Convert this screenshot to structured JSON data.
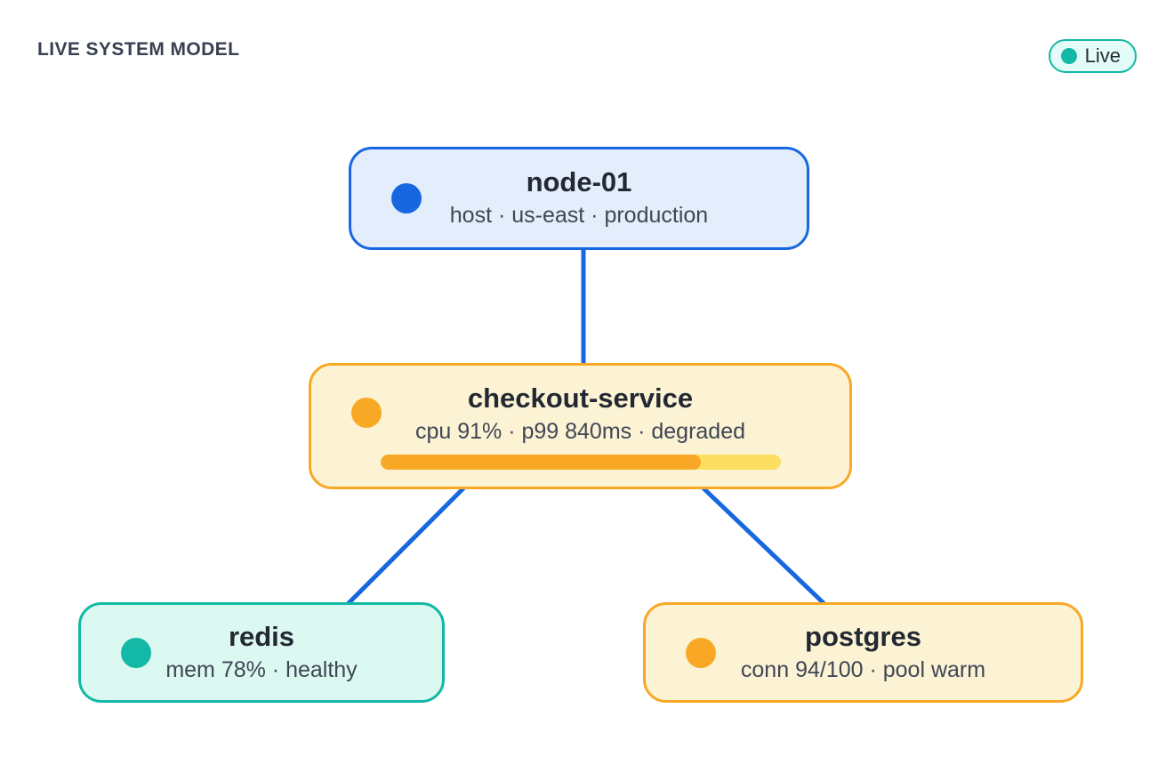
{
  "header": {
    "title": "LIVE SYSTEM MODEL",
    "live_badge_label": "Live"
  },
  "colors": {
    "blue": "#1667e0",
    "blue_bg": "#e4edfb",
    "amber": "#f9a825",
    "amber_bg": "#fcf3d5",
    "amber_track": "#fcde61",
    "teal": "#14b8a6",
    "teal_bg": "#dbf8f1",
    "badge_bg": "#e4fcf8",
    "edge": "#1667e0",
    "title_text": "#394050",
    "node_title_text": "#232932",
    "node_subtitle_text": "#3f4654"
  },
  "nodes": [
    {
      "id": "node-01",
      "title": "node-01",
      "subtitle": "host · us-east · production",
      "status_color": "#1667e0"
    },
    {
      "id": "checkout-service",
      "title": "checkout-service",
      "subtitle": "cpu 91% · p99 840ms · degraded",
      "status_color": "#f9a825",
      "progress_pct": 80
    },
    {
      "id": "redis",
      "title": "redis",
      "subtitle": "mem 78% · healthy",
      "status_color": "#14b8a6"
    },
    {
      "id": "postgres",
      "title": "postgres",
      "subtitle": "conn 94/100 · pool warm",
      "status_color": "#f9a825"
    }
  ],
  "edges": [
    {
      "from": "node-01",
      "to": "checkout-service"
    },
    {
      "from": "checkout-service",
      "to": "redis"
    },
    {
      "from": "checkout-service",
      "to": "postgres"
    }
  ]
}
